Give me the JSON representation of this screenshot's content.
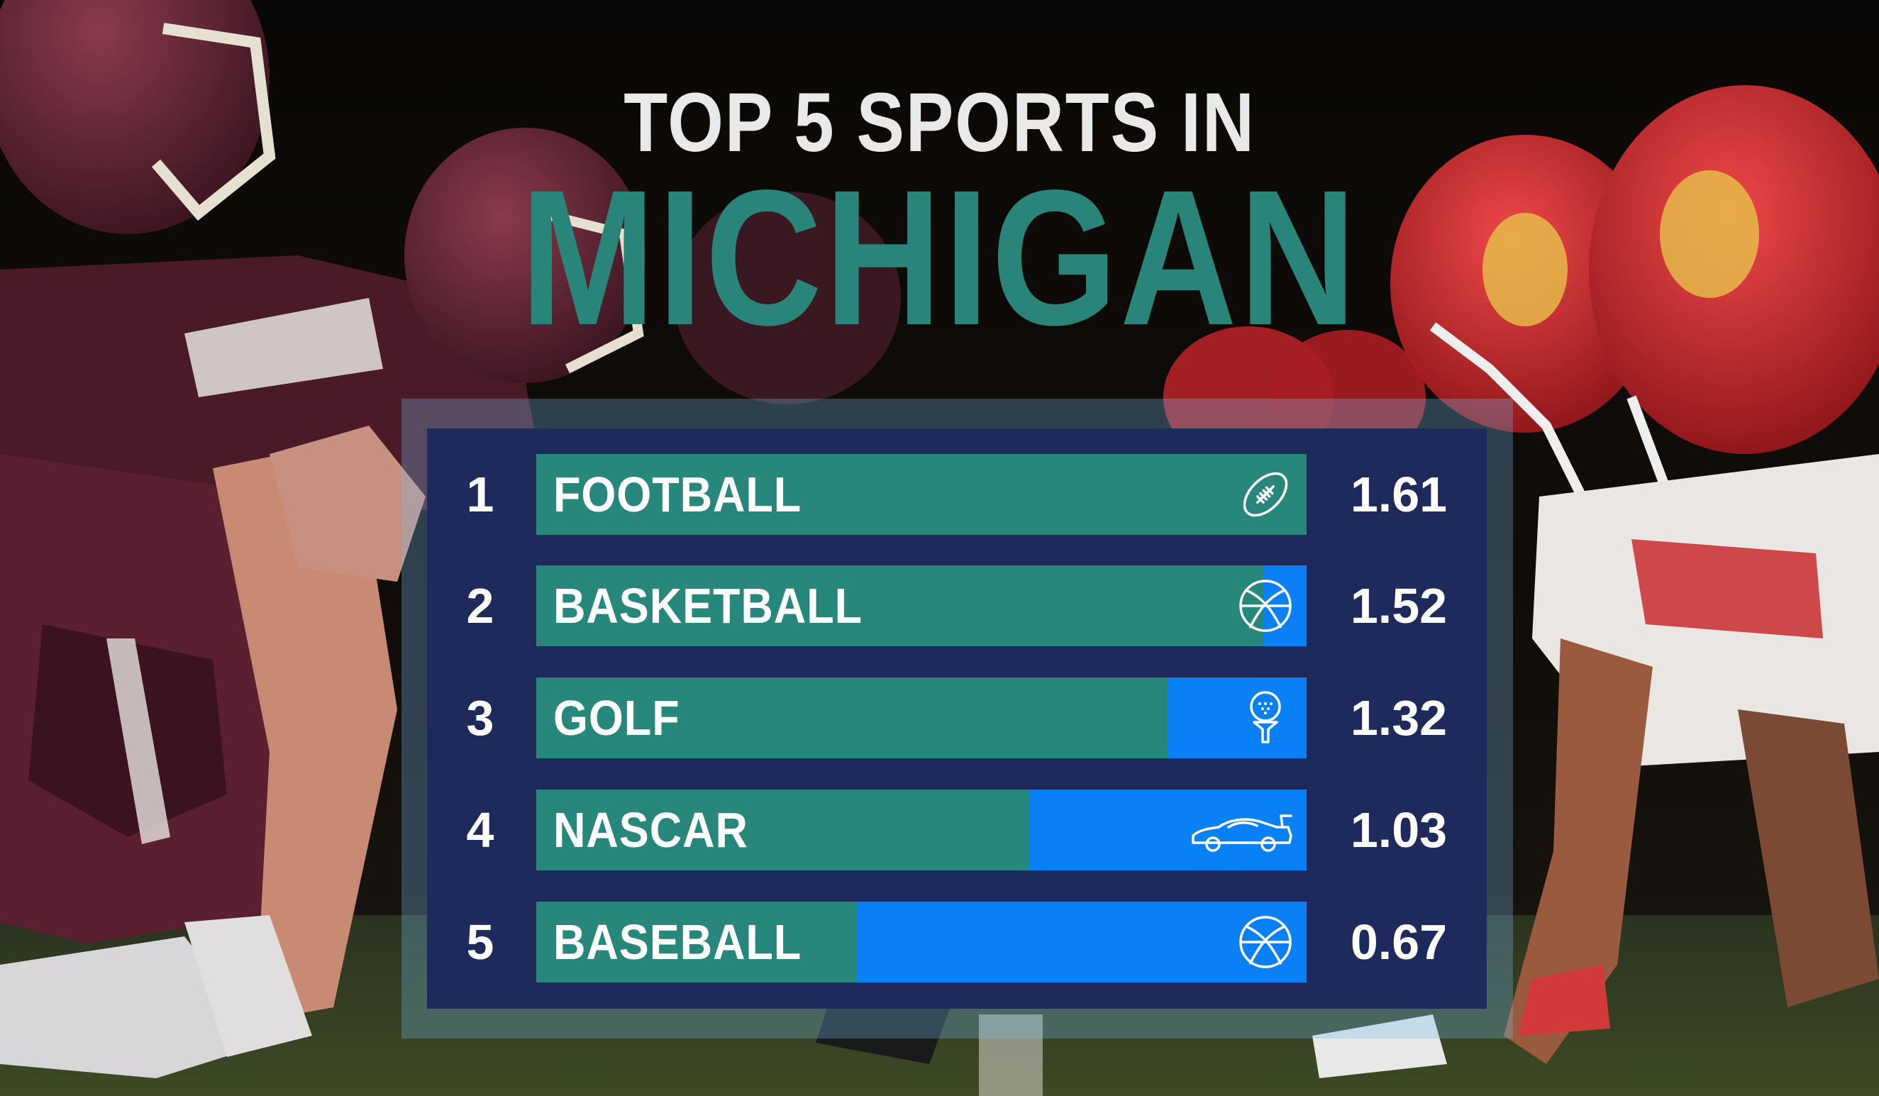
{
  "header": {
    "title_line1": "TOP 5 SPORTS IN",
    "title_line2": "MICHIGAN"
  },
  "colors": {
    "title_white": "#e9e9e9",
    "title_teal": "#29857a",
    "panel_bg": "#1e2a5c",
    "bar_fill": "#27877a",
    "bar_track": "#0a80f7",
    "text": "#ffffff"
  },
  "chart_data": {
    "type": "bar",
    "orientation": "horizontal",
    "title": "TOP 5 SPORTS IN MICHIGAN",
    "categories": [
      "FOOTBALL",
      "BASKETBALL",
      "GOLF",
      "NASCAR",
      "BASEBALL"
    ],
    "ranks": [
      "1",
      "2",
      "3",
      "4",
      "5"
    ],
    "values": [
      1.61,
      1.52,
      1.32,
      1.03,
      0.67
    ],
    "value_labels": [
      "1.61",
      "1.52",
      "1.32",
      "1.03",
      "0.67"
    ],
    "icons": [
      "football-icon",
      "basketball-icon",
      "golf-tee-icon",
      "race-car-icon",
      "basketball-icon"
    ],
    "xlim": [
      0,
      1.61
    ],
    "xlabel": "",
    "ylabel": "",
    "grid": false,
    "legend": "none"
  }
}
